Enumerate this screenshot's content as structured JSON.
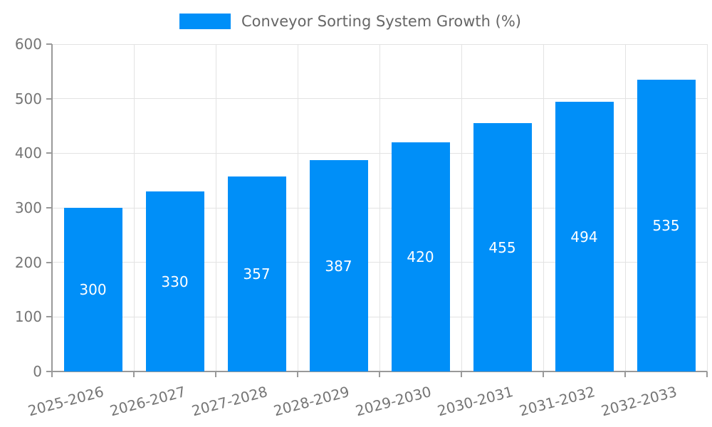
{
  "legend": {
    "label": "Conveyor Sorting System Growth (%)"
  },
  "chart_data": {
    "type": "bar",
    "title": "",
    "legend_entries": [
      "Conveyor Sorting System Growth (%)"
    ],
    "legend_position": "top-center",
    "categories": [
      "2025-2026",
      "2026-2027",
      "2027-2028",
      "2028-2029",
      "2029-2030",
      "2030-2031",
      "2031-2032",
      "2032-2033"
    ],
    "series": [
      {
        "name": "Conveyor Sorting System Growth (%)",
        "values": [
          300,
          330,
          357,
          387,
          420,
          455,
          494,
          535
        ]
      }
    ],
    "xlabel": "",
    "ylabel": "",
    "ylim": [
      0,
      600
    ],
    "yticks": [
      0,
      100,
      200,
      300,
      400,
      500,
      600
    ],
    "grid": true,
    "value_labels_position": "inside-center",
    "x_tick_rotation_deg": -15,
    "colors": {
      "bar": "#008FF8",
      "grid": "#e3e3e3",
      "axis": "#999999",
      "tick_text": "#757575",
      "legend_text": "#666666",
      "value_text": "#ffffff",
      "background": "#ffffff"
    }
  }
}
